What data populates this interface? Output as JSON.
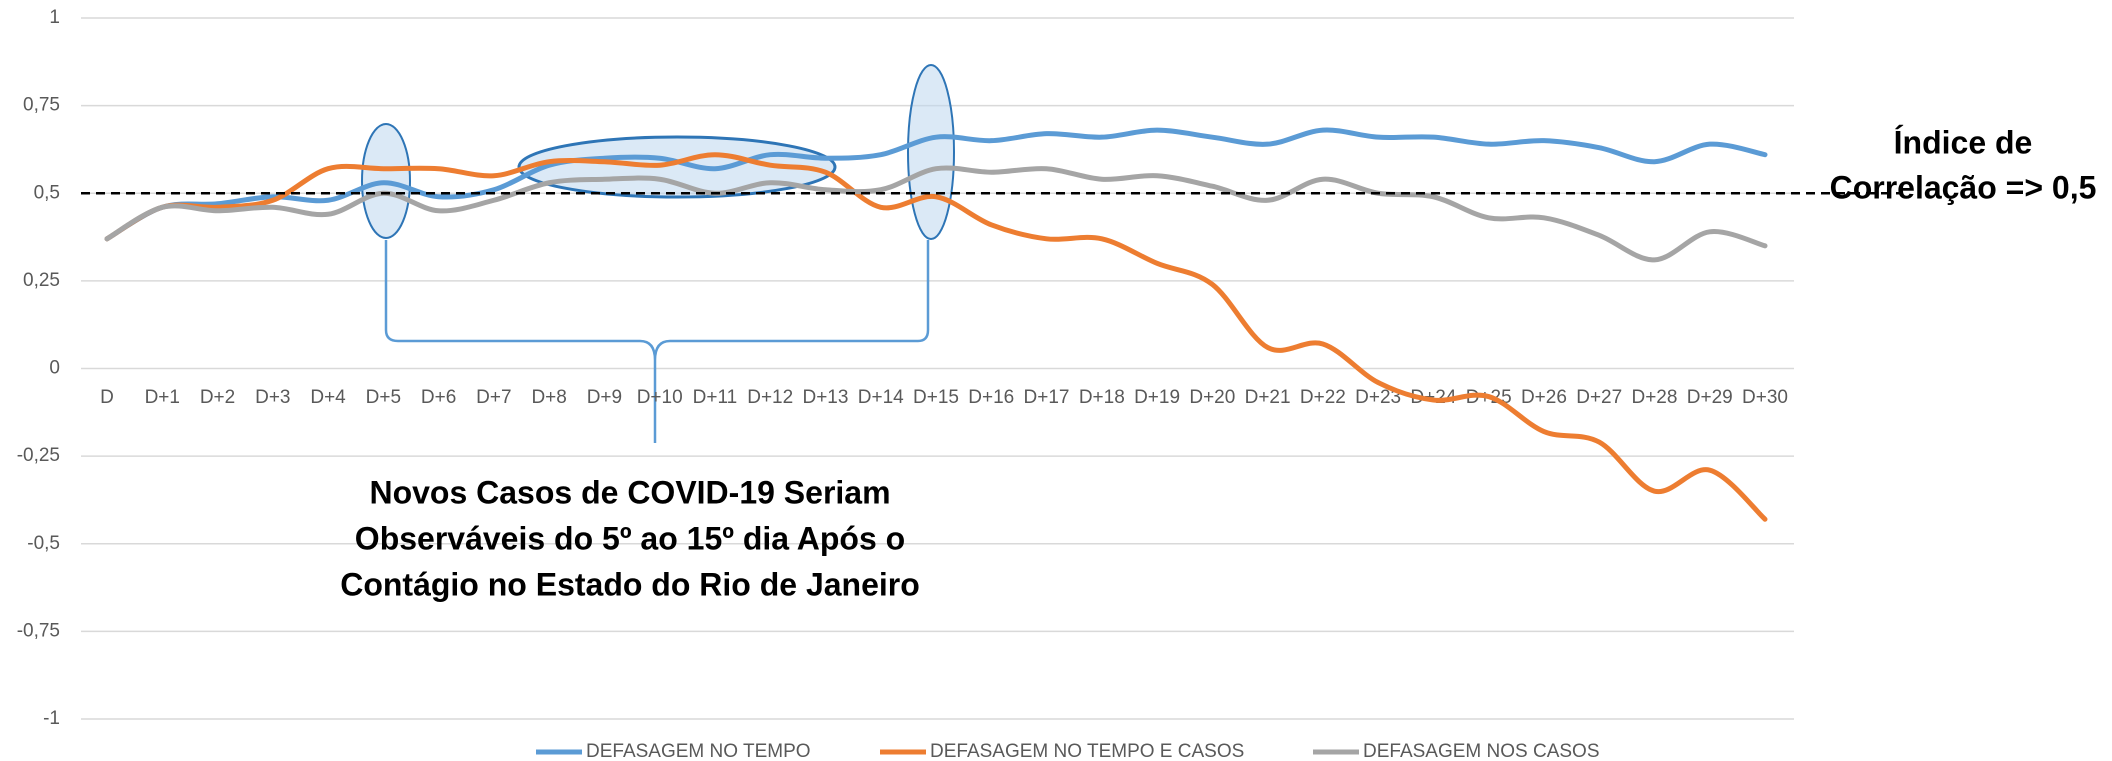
{
  "chart_data": {
    "type": "line",
    "categories": [
      "D",
      "D+1",
      "D+2",
      "D+3",
      "D+4",
      "D+5",
      "D+6",
      "D+7",
      "D+8",
      "D+9",
      "D+10",
      "D+11",
      "D+12",
      "D+13",
      "D+14",
      "D+15",
      "D+16",
      "D+17",
      "D+18",
      "D+19",
      "D+20",
      "D+21",
      "D+22",
      "D+23",
      "D+24",
      "D+25",
      "D+26",
      "D+27",
      "D+28",
      "D+29",
      "D+30"
    ],
    "series": [
      {
        "name": "DEFASAGEM NO TEMPO",
        "color": "#5b9bd5",
        "values": [
          0.37,
          0.46,
          0.47,
          0.49,
          0.48,
          0.53,
          0.49,
          0.51,
          0.58,
          0.6,
          0.6,
          0.57,
          0.61,
          0.6,
          0.61,
          0.66,
          0.65,
          0.67,
          0.66,
          0.68,
          0.66,
          0.64,
          0.68,
          0.66,
          0.66,
          0.64,
          0.65,
          0.63,
          0.59,
          0.64,
          0.61
        ]
      },
      {
        "name": "DEFASAGEM NO TEMPO E CASOS",
        "color": "#ed7d31",
        "values": [
          0.37,
          0.46,
          0.46,
          0.48,
          0.57,
          0.57,
          0.57,
          0.55,
          0.59,
          0.59,
          0.58,
          0.61,
          0.58,
          0.56,
          0.46,
          0.49,
          0.41,
          0.37,
          0.37,
          0.3,
          0.24,
          0.06,
          0.07,
          -0.04,
          -0.09,
          -0.08,
          -0.18,
          -0.21,
          -0.35,
          -0.29,
          -0.43
        ]
      },
      {
        "name": "DEFASAGEM NOS CASOS",
        "color": "#a5a5a5",
        "values": [
          0.37,
          0.46,
          0.45,
          0.46,
          0.44,
          0.5,
          0.45,
          0.48,
          0.53,
          0.54,
          0.54,
          0.5,
          0.53,
          0.51,
          0.51,
          0.57,
          0.56,
          0.57,
          0.54,
          0.55,
          0.52,
          0.48,
          0.54,
          0.5,
          0.49,
          0.43,
          0.43,
          0.38,
          0.31,
          0.39,
          0.35
        ]
      }
    ],
    "ylim": [
      -1,
      1
    ],
    "yticks": [
      -1,
      {
        "value": -0.75,
        "label": "-0,75"
      },
      {
        "value": -0.5,
        "label": "-0,5"
      },
      {
        "value": -0.25,
        "label": "-0,25"
      },
      0,
      {
        "value": 0.25,
        "label": "0,25"
      },
      {
        "value": 0.5,
        "label": "0,5"
      },
      {
        "value": 0.75,
        "label": "0,75"
      },
      1
    ],
    "grid": true,
    "legend": "bottom",
    "reference_line": {
      "value": 0.5,
      "label_lines": [
        "Índice de",
        "Correlação => 0,5"
      ]
    },
    "annotation_lines": [
      "Novos Casos de COVID-19 Seriam",
      "Observáveis do 5º ao 15º dia Após o",
      "Contágio no Estado do Rio de Janeiro"
    ]
  }
}
